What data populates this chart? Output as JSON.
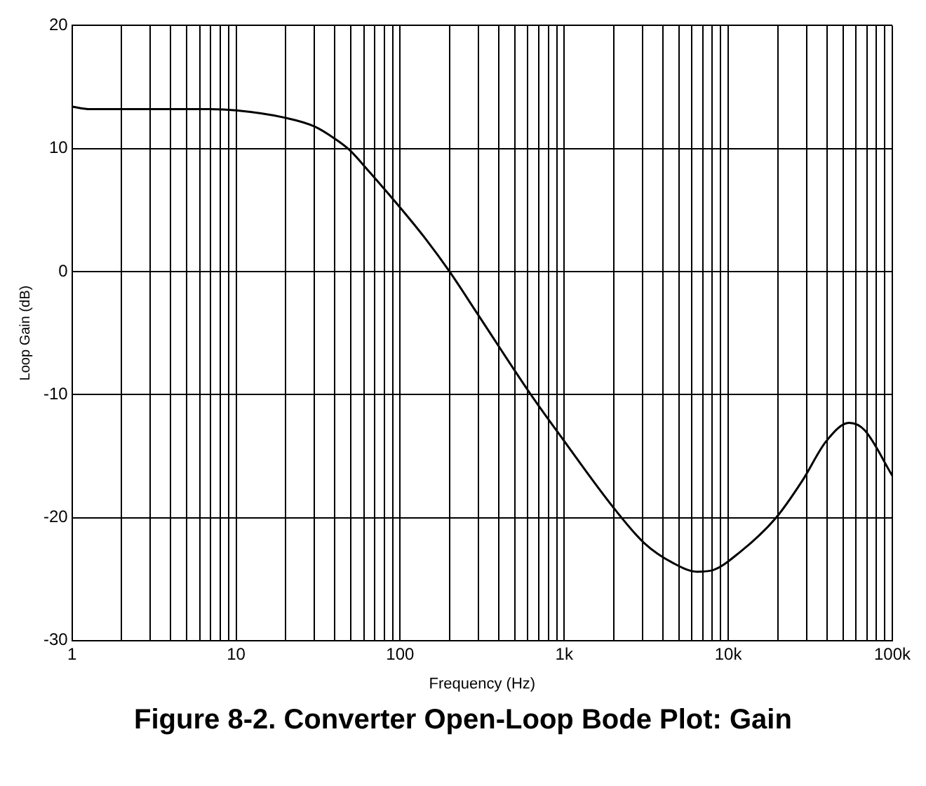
{
  "chart_data": {
    "type": "line",
    "title": "Figure 8-2. Converter Open-Loop Bode Plot: Gain",
    "xlabel": "Frequency (Hz)",
    "ylabel": "Loop Gain (dB)",
    "x": [
      1,
      1.29,
      6.9,
      10,
      20,
      30,
      40,
      49,
      64,
      100,
      144,
      200,
      295,
      626,
      990,
      2000,
      3090,
      4620,
      6450,
      7920,
      11800,
      19600,
      28300,
      39500,
      54600,
      67800,
      100000
    ],
    "series": [
      {
        "color": "#000000",
        "values": [
          13.4,
          13.2,
          13.2,
          13.1,
          12.5,
          11.8,
          10.8,
          9.9,
          8.2,
          5.2,
          2.6,
          0,
          -3.4,
          -10,
          -13.7,
          -19.2,
          -22.1,
          -23.7,
          -24.4,
          -24.3,
          -22.8,
          -20,
          -17,
          -13.8,
          -12.3,
          -12.9,
          -16.6
        ]
      }
    ],
    "log": "x",
    "xlim": [
      1,
      100000
    ],
    "xticks": [
      1,
      {
        "value": 2,
        "label": null
      },
      {
        "value": 3,
        "label": null
      },
      {
        "value": 4,
        "label": null
      },
      {
        "value": 5,
        "label": null
      },
      {
        "value": 6,
        "label": null
      },
      {
        "value": 7,
        "label": null
      },
      {
        "value": 8,
        "label": null
      },
      {
        "value": 9,
        "label": null
      },
      10,
      {
        "value": 20,
        "label": null
      },
      {
        "value": 30,
        "label": null
      },
      {
        "value": 40,
        "label": null
      },
      {
        "value": 50,
        "label": null
      },
      {
        "value": 60,
        "label": null
      },
      {
        "value": 70,
        "label": null
      },
      {
        "value": 80,
        "label": null
      },
      {
        "value": 90,
        "label": null
      },
      100,
      {
        "value": 200,
        "label": null
      },
      {
        "value": 300,
        "label": null
      },
      {
        "value": 400,
        "label": null
      },
      {
        "value": 500,
        "label": null
      },
      {
        "value": 600,
        "label": null
      },
      {
        "value": 700,
        "label": null
      },
      {
        "value": 800,
        "label": null
      },
      {
        "value": 900,
        "label": null
      },
      {
        "value": 1000,
        "label": "1k"
      },
      {
        "value": 2000,
        "label": null
      },
      {
        "value": 3000,
        "label": null
      },
      {
        "value": 4000,
        "label": null
      },
      {
        "value": 5000,
        "label": null
      },
      {
        "value": 6000,
        "label": null
      },
      {
        "value": 7000,
        "label": null
      },
      {
        "value": 8000,
        "label": null
      },
      {
        "value": 9000,
        "label": null
      },
      {
        "value": 10000,
        "label": "10k"
      },
      {
        "value": 20000,
        "label": null
      },
      {
        "value": 30000,
        "label": null
      },
      {
        "value": 40000,
        "label": null
      },
      {
        "value": 50000,
        "label": null
      },
      {
        "value": 60000,
        "label": null
      },
      {
        "value": 70000,
        "label": null
      },
      {
        "value": 80000,
        "label": null
      },
      {
        "value": 90000,
        "label": null
      },
      {
        "value": 100000,
        "label": "100k"
      }
    ],
    "ylim": [
      -30,
      20
    ],
    "yticks": [
      -30,
      -20,
      -10,
      0,
      10,
      20
    ],
    "grid": true,
    "legend": false,
    "marker": "none",
    "line_style": "solid"
  }
}
